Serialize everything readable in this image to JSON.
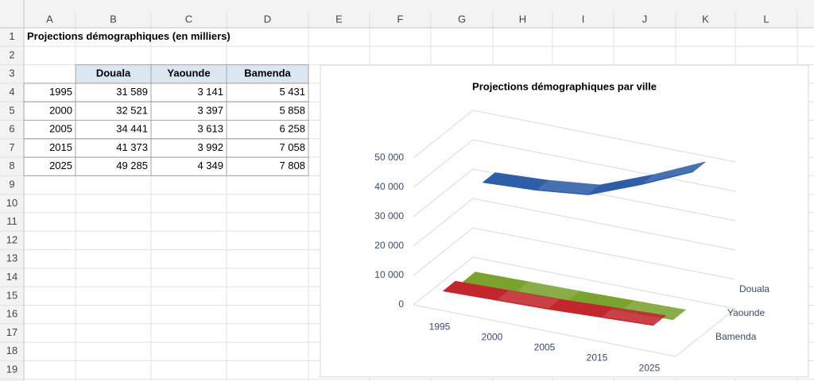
{
  "sheet": {
    "columns": [
      "A",
      "B",
      "C",
      "D",
      "E",
      "F",
      "G",
      "H",
      "I",
      "J",
      "K",
      "L"
    ],
    "rows": [
      1,
      2,
      3,
      4,
      5,
      6,
      7,
      8,
      9,
      10,
      11,
      12,
      13,
      14,
      15,
      16,
      17,
      18,
      19
    ],
    "title": "Projections démographiques (en milliers)",
    "table": {
      "header": [
        "Douala",
        "Yaounde",
        "Bamenda"
      ],
      "rows": [
        [
          "1995",
          "31 589",
          "3 141",
          "5 431"
        ],
        [
          "2000",
          "32 521",
          "3 397",
          "5 858"
        ],
        [
          "2005",
          "34 441",
          "3 613",
          "6 258"
        ],
        [
          "2015",
          "41 373",
          "3 992",
          "7 058"
        ],
        [
          "2025",
          "49 285",
          "4 349",
          "7 808"
        ]
      ]
    }
  },
  "chart_data": {
    "type": "line3d",
    "title": "Projections démographiques par ville",
    "categories": [
      "1995",
      "2000",
      "2005",
      "2015",
      "2025"
    ],
    "series": [
      {
        "name": "Douala",
        "color": "#2e5ea8",
        "values": [
          31589,
          32521,
          34441,
          41373,
          49285
        ]
      },
      {
        "name": "Yaounde",
        "color": "#7aa22e",
        "values": [
          3141,
          3397,
          3613,
          3992,
          4349
        ]
      },
      {
        "name": "Bamenda",
        "color": "#c1272d",
        "values": [
          5431,
          5858,
          6258,
          7058,
          7808
        ]
      }
    ],
    "ylim": [
      0,
      50000
    ],
    "yticks": [
      0,
      {
        "value": 10000,
        "label": "10 000"
      },
      {
        "value": 20000,
        "label": "20 000"
      },
      {
        "value": 30000,
        "label": "30 000"
      },
      {
        "value": 40000,
        "label": "40 000"
      },
      {
        "value": 50000,
        "label": "50 000"
      }
    ],
    "grid": true
  }
}
